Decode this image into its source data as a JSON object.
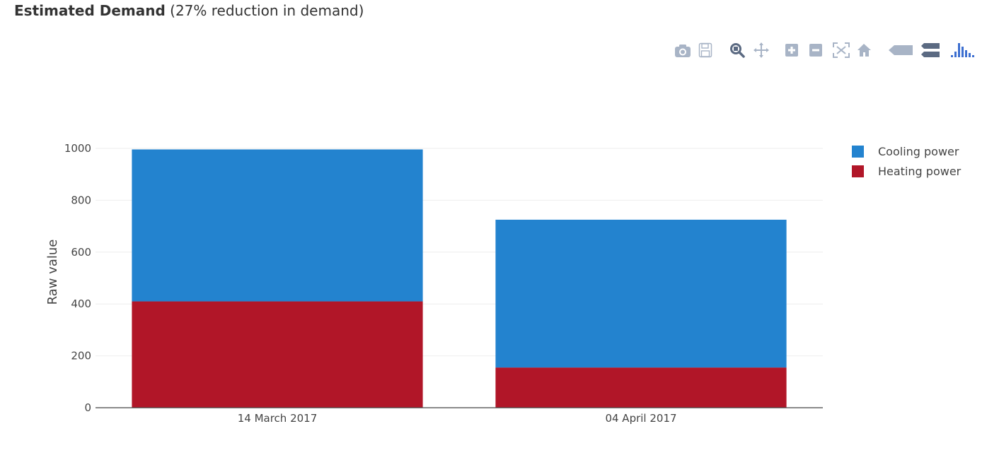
{
  "header": {
    "title_bold": "Estimated Demand",
    "title_rest": " (27% reduction in demand)"
  },
  "modebar": {
    "icons": [
      "camera-icon",
      "save-icon",
      "zoom-icon",
      "pan-icon",
      "zoom-in-icon",
      "zoom-out-icon",
      "autoscale-icon",
      "reset-axes-icon",
      "hover-closest-icon",
      "hover-compare-icon",
      "plotly-logo-icon"
    ]
  },
  "chart_data": {
    "type": "bar",
    "barmode": "stack",
    "categories": [
      "14 March 2017",
      "04 April 2017"
    ],
    "series": [
      {
        "name": "Heating power",
        "values": [
          410,
          155
        ],
        "color": "#b11628"
      },
      {
        "name": "Cooling power",
        "values": [
          586,
          570
        ],
        "color": "#2383cf"
      }
    ],
    "xlabel": "",
    "ylabel": "Raw value",
    "ylim": [
      0,
      1000
    ],
    "yticks": [
      0,
      200,
      400,
      600,
      800,
      1000
    ],
    "grid": true,
    "legend_position": "top-right",
    "legend_order": [
      "Cooling power",
      "Heating power"
    ]
  }
}
